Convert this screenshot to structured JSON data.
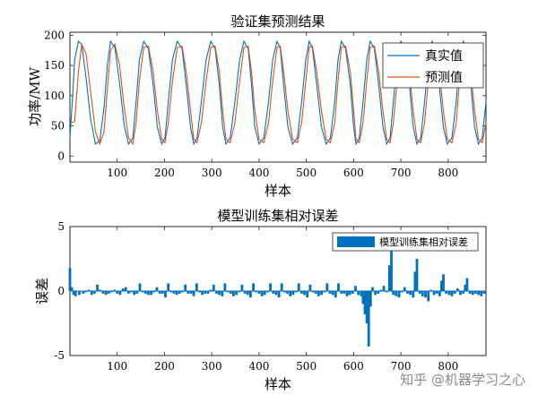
{
  "chart_data": [
    {
      "type": "line",
      "title": "验证集预测结果",
      "xlabel": "样本",
      "ylabel": "功率/MW",
      "xlim": [
        0,
        880
      ],
      "ylim": [
        -10,
        205
      ],
      "xticks": [
        100,
        200,
        300,
        400,
        500,
        600,
        700,
        800
      ],
      "yticks": [
        0,
        50,
        100,
        150,
        200
      ],
      "legend_position": "top-right",
      "series": [
        {
          "name": "真实值",
          "color": "#0072BD",
          "x": [
            0,
            5,
            10,
            18,
            25,
            34,
            44,
            54,
            63,
            72,
            79,
            86,
            95,
            105,
            115,
            124,
            133,
            140,
            147,
            156,
            166,
            176,
            185,
            194,
            201,
            208,
            217,
            227,
            237,
            246,
            255,
            262,
            269,
            278,
            288,
            298,
            307,
            316,
            323,
            330,
            339,
            349,
            359,
            368,
            377,
            384,
            391,
            400,
            410,
            420,
            429,
            438,
            445,
            452,
            461,
            471,
            481,
            490,
            499,
            506,
            513,
            522,
            532,
            542,
            551,
            560,
            567,
            574,
            583,
            593,
            600,
            605,
            612,
            620,
            628,
            635,
            644,
            653,
            662,
            670,
            677,
            684,
            692,
            700,
            710,
            718,
            726,
            734,
            742,
            750,
            758,
            766,
            774,
            781,
            790,
            798,
            808,
            817,
            824,
            832,
            840,
            848,
            856,
            864,
            872,
            880
          ],
          "values": [
            30,
            90,
            160,
            190,
            185,
            130,
            60,
            20,
            25,
            80,
            150,
            190,
            180,
            120,
            50,
            20,
            30,
            90,
            160,
            190,
            178,
            118,
            48,
            20,
            30,
            90,
            160,
            190,
            178,
            118,
            48,
            20,
            30,
            90,
            160,
            190,
            178,
            118,
            48,
            20,
            30,
            90,
            160,
            190,
            178,
            118,
            48,
            20,
            30,
            90,
            160,
            190,
            178,
            118,
            48,
            20,
            30,
            90,
            160,
            190,
            178,
            118,
            48,
            20,
            30,
            90,
            160,
            190,
            178,
            118,
            48,
            20,
            30,
            90,
            160,
            190,
            178,
            118,
            48,
            20,
            30,
            90,
            160,
            190,
            178,
            118,
            48,
            20,
            30,
            90,
            160,
            190,
            178,
            118,
            48,
            20,
            30,
            90,
            160,
            190,
            178,
            118,
            48,
            20,
            30,
            90
          ]
        },
        {
          "name": "预测值",
          "color": "#D95319",
          "x": [
            0,
            5,
            10,
            18,
            25,
            34,
            44,
            54,
            63,
            72,
            79,
            86,
            95,
            105,
            115,
            124,
            133,
            140,
            147,
            156,
            166,
            176,
            185,
            194,
            201,
            208,
            217,
            227,
            237,
            246,
            255,
            262,
            269,
            278,
            288,
            298,
            307,
            316,
            323,
            330,
            339,
            349,
            359,
            368,
            377,
            384,
            391,
            400,
            410,
            420,
            429,
            438,
            445,
            452,
            461,
            471,
            481,
            490,
            499,
            506,
            513,
            522,
            532,
            542,
            551,
            560,
            567,
            574,
            583,
            593,
            600,
            605,
            612,
            620,
            628,
            635,
            644,
            653,
            662,
            670,
            677,
            684,
            692,
            700,
            710,
            718,
            726,
            734,
            742,
            750,
            758,
            766,
            774,
            781,
            790,
            798,
            808,
            817,
            824,
            832,
            840,
            848,
            856,
            864,
            872,
            880
          ],
          "values": [
            55,
            56,
            57,
            140,
            185,
            170,
            105,
            40,
            20,
            40,
            110,
            175,
            185,
            150,
            80,
            30,
            20,
            55,
            125,
            180,
            182,
            140,
            75,
            28,
            22,
            55,
            125,
            180,
            182,
            140,
            75,
            28,
            22,
            55,
            125,
            180,
            182,
            140,
            75,
            28,
            22,
            55,
            125,
            180,
            182,
            140,
            75,
            28,
            22,
            55,
            125,
            180,
            182,
            140,
            75,
            28,
            22,
            55,
            125,
            180,
            182,
            140,
            75,
            28,
            22,
            55,
            125,
            180,
            182,
            140,
            75,
            28,
            22,
            55,
            125,
            180,
            182,
            140,
            75,
            28,
            22,
            55,
            125,
            180,
            182,
            140,
            75,
            28,
            22,
            55,
            125,
            180,
            182,
            140,
            75,
            28,
            22,
            55,
            125,
            180,
            182,
            140,
            75,
            28,
            22,
            55
          ]
        }
      ]
    },
    {
      "type": "bar",
      "title": "模型训练集相对误差",
      "xlabel": "样本",
      "ylabel": "误差",
      "xlim": [
        0,
        880
      ],
      "ylim": [
        -5,
        5
      ],
      "xticks": [
        100,
        200,
        300,
        400,
        500,
        600,
        700,
        800
      ],
      "yticks": [
        -5,
        0,
        5
      ],
      "legend_position": "top-right",
      "series": [
        {
          "name": "模型训练集相对误差",
          "color": "#0072BD",
          "x": [
            0,
            4,
            8,
            12,
            20,
            28,
            34,
            40,
            46,
            52,
            58,
            64,
            70,
            76,
            82,
            88,
            94,
            100,
            106,
            112,
            118,
            124,
            130,
            136,
            142,
            148,
            154,
            160,
            166,
            172,
            178,
            184,
            190,
            196,
            202,
            208,
            214,
            220,
            226,
            232,
            238,
            244,
            250,
            256,
            262,
            268,
            274,
            280,
            286,
            292,
            298,
            304,
            310,
            316,
            322,
            328,
            334,
            340,
            346,
            352,
            358,
            364,
            370,
            376,
            382,
            388,
            394,
            400,
            406,
            412,
            418,
            424,
            430,
            436,
            442,
            448,
            454,
            460,
            466,
            472,
            478,
            484,
            490,
            496,
            502,
            508,
            514,
            520,
            526,
            532,
            538,
            544,
            550,
            556,
            562,
            568,
            574,
            580,
            586,
            592,
            598,
            604,
            610,
            616,
            620,
            624,
            628,
            632,
            636,
            640,
            646,
            652,
            658,
            664,
            670,
            676,
            680,
            684,
            690,
            696,
            702,
            708,
            714,
            720,
            726,
            730,
            734,
            740,
            746,
            752,
            758,
            764,
            770,
            776,
            782,
            786,
            790,
            796,
            802,
            808,
            814,
            820,
            826,
            832,
            836,
            840,
            846,
            852,
            858,
            864,
            870,
            876
          ],
          "values": [
            1.8,
            0.3,
            -0.3,
            -0.4,
            -0.3,
            -0.2,
            -0.1,
            0.1,
            -0.3,
            -0.2,
            0.5,
            0.1,
            -0.2,
            -0.3,
            -0.2,
            -0.1,
            0.1,
            -0.2,
            -0.3,
            0.2,
            0.3,
            -0.2,
            -0.1,
            -0.3,
            -0.2,
            0.6,
            -0.1,
            -0.2,
            -0.3,
            -0.3,
            -0.1,
            0.3,
            -0.2,
            -0.2,
            -0.5,
            0.6,
            -0.1,
            -0.2,
            -0.3,
            -0.2,
            -0.1,
            0.5,
            -0.2,
            -0.2,
            -0.4,
            0.6,
            -0.1,
            -0.3,
            -0.2,
            -0.2,
            0.1,
            0.5,
            -0.2,
            -0.3,
            -0.4,
            0.6,
            -0.1,
            -0.2,
            -0.4,
            -0.3,
            -0.1,
            0.5,
            -0.2,
            -0.3,
            -0.5,
            0.6,
            -0.1,
            -0.2,
            -0.4,
            -0.3,
            -0.1,
            0.6,
            -0.2,
            -0.3,
            -0.5,
            0.6,
            -0.1,
            -0.2,
            -0.4,
            -0.3,
            -0.1,
            0.6,
            -0.2,
            -0.3,
            -0.5,
            0.5,
            -0.1,
            -0.2,
            -0.4,
            -0.3,
            -0.1,
            0.6,
            -0.2,
            -0.3,
            -0.5,
            0.6,
            -0.2,
            -0.2,
            -0.4,
            -0.3,
            -0.2,
            0.4,
            -0.3,
            -0.4,
            -1.0,
            -1.8,
            -2.5,
            -4.3,
            -1.2,
            0.3,
            -0.3,
            -0.2,
            0.1,
            0.4,
            -0.1,
            2.0,
            3.2,
            -0.3,
            -0.4,
            -0.5,
            -0.1,
            0.3,
            -0.2,
            -0.3,
            -0.5,
            1.5,
            2.5,
            -0.2,
            -0.4,
            -0.5,
            -0.8,
            0.1,
            -0.3,
            -0.2,
            -0.4,
            0.8,
            1.3,
            -0.2,
            -0.3,
            -0.4,
            -0.2,
            0.2,
            -0.3,
            -0.2,
            0.5,
            1.0,
            -0.2,
            -0.3,
            -0.2,
            -0.3,
            -0.4,
            -0.2
          ]
        }
      ]
    }
  ],
  "watermark": "知乎 @机器学习之心"
}
